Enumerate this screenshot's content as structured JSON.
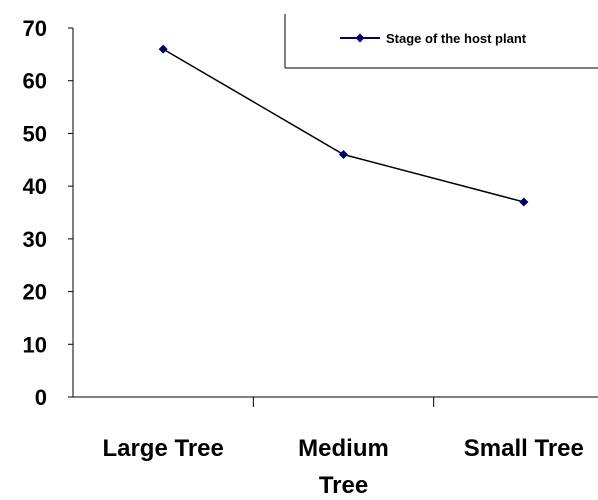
{
  "chart_data": {
    "type": "line",
    "categories": [
      "Large Tree",
      "Medium Tree",
      "Small Tree"
    ],
    "category_label_lines": [
      [
        "Large Tree"
      ],
      [
        "Medium",
        "Tree"
      ],
      [
        "Small Tree"
      ]
    ],
    "series": [
      {
        "name": "Stage of the host plant",
        "values": [
          66,
          46,
          37
        ],
        "color": "#000066"
      }
    ],
    "ylim": [
      0,
      70
    ],
    "yticks": [
      0,
      10,
      20,
      30,
      40,
      50,
      60,
      70
    ],
    "grid": false,
    "legend_position": "top-right",
    "title": "",
    "xlabel": "",
    "ylabel": ""
  }
}
